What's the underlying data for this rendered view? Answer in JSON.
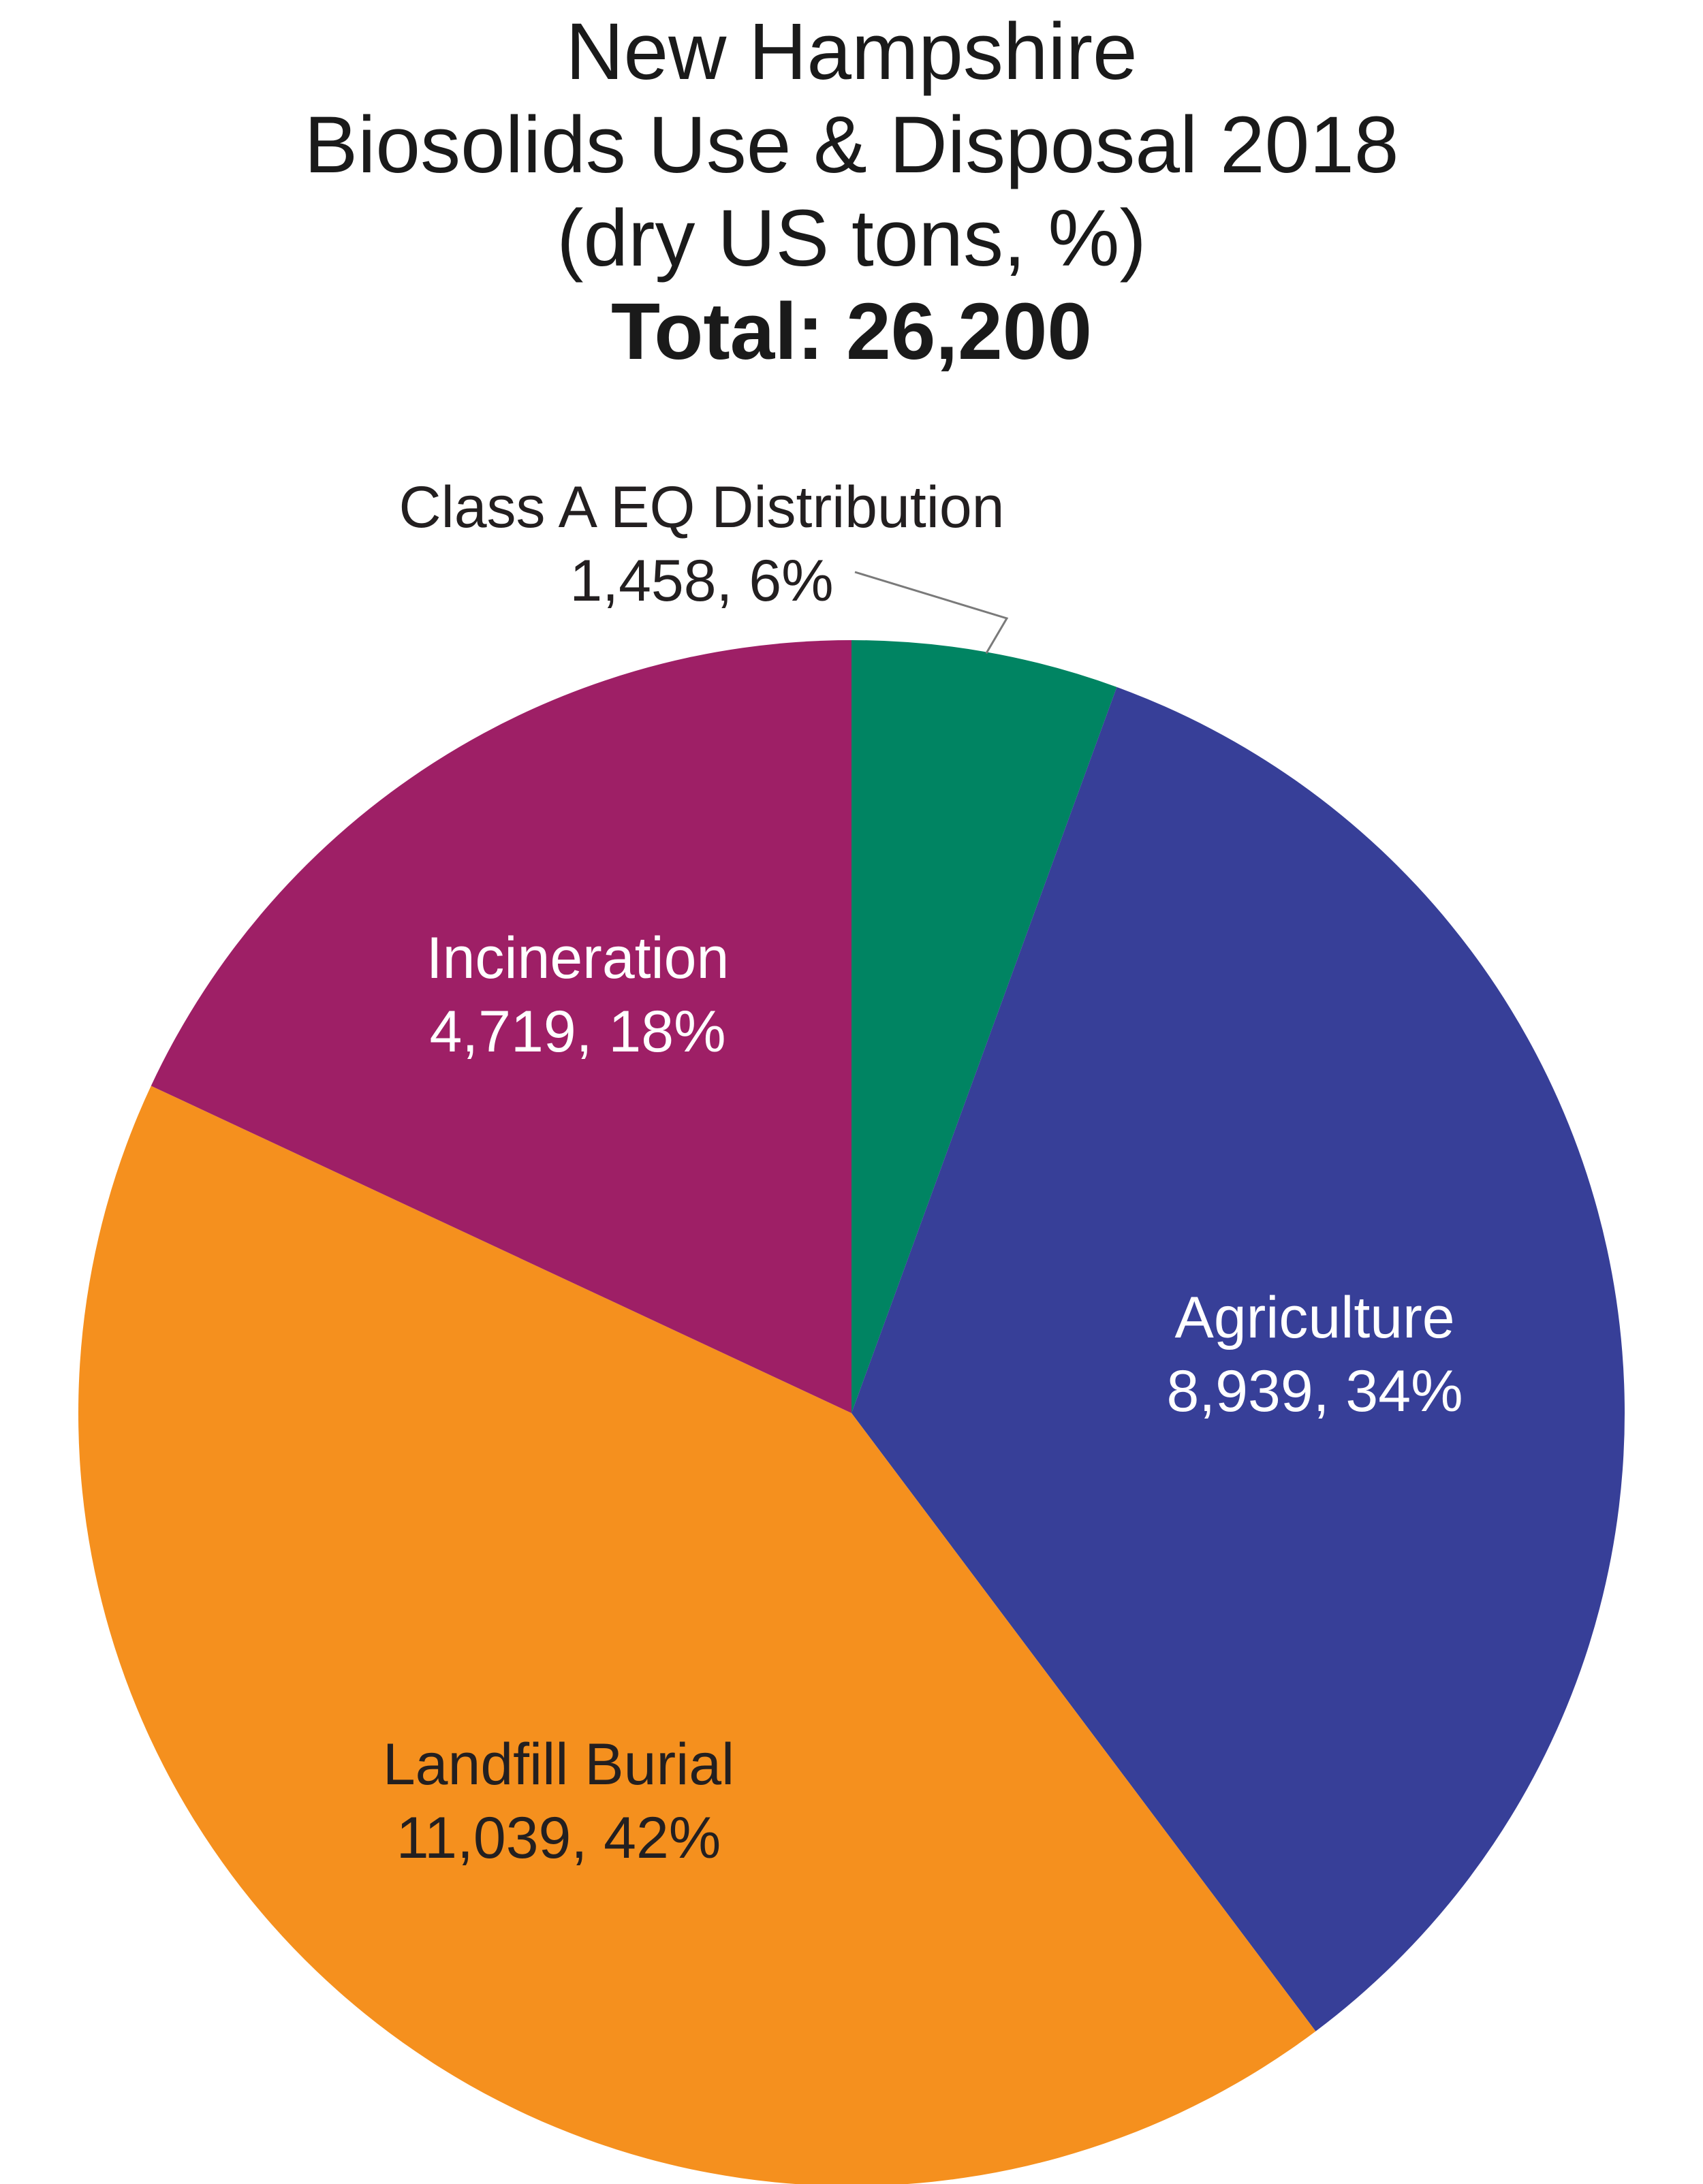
{
  "chart_data": {
    "type": "pie",
    "title": [
      "New Hampshire",
      "Biosolids Use & Disposal 2018",
      "(dry US tons, %)",
      "Total: 26,200"
    ],
    "unit": "dry US tons",
    "total": 26200,
    "slices": [
      {
        "name": "Class A EQ Distribution",
        "value": 1458,
        "percent": 6,
        "value_label": "1,458, 6%",
        "color": "#008462",
        "label_color": "#231f20",
        "label_placement": "outside-top"
      },
      {
        "name": "Agriculture",
        "value": 8939,
        "percent": 34,
        "value_label": "8,939, 34%",
        "color": "#373f98",
        "label_color": "#ffffff",
        "label_placement": "inside"
      },
      {
        "name": "Landfill Burial",
        "value": 11039,
        "percent": 42,
        "value_label": "11,039, 42%",
        "color": "#f5901e",
        "label_color": "#231f20",
        "label_placement": "inside"
      },
      {
        "name": "Incineration",
        "value": 4719,
        "percent": 18,
        "value_label": "4,719, 18%",
        "color": "#9e1f66",
        "label_color": "#ffffff",
        "label_placement": "inside"
      }
    ],
    "start_angle": "top",
    "direction": "clockwise"
  }
}
